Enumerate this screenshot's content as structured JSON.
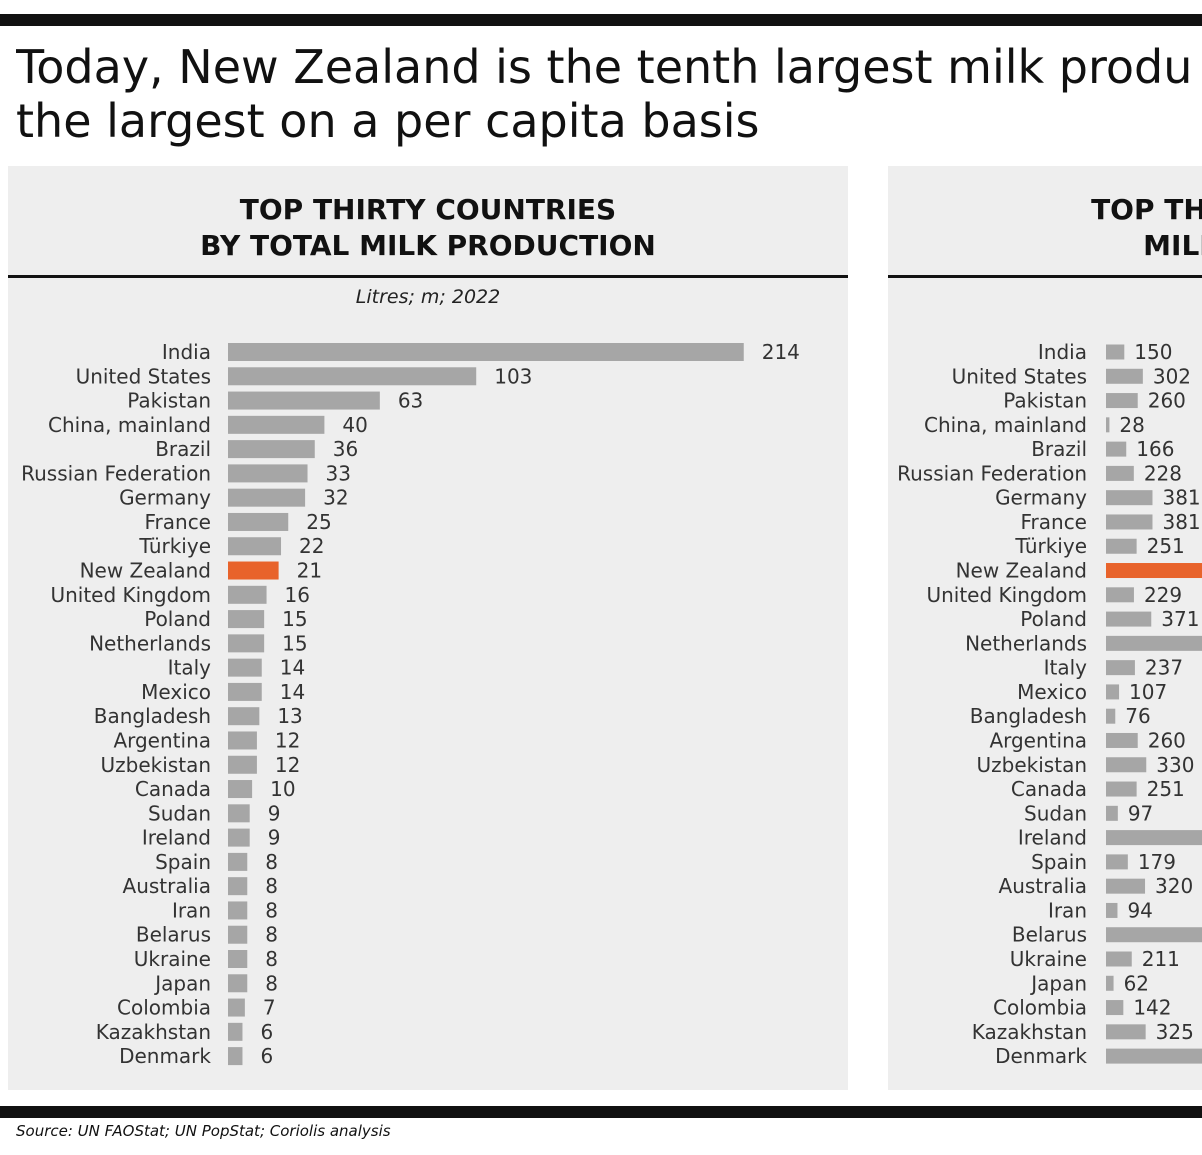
{
  "headline": {
    "line1": "Today, New Zealand is the tenth largest milk produ",
    "line2": "the largest on a per capita basis"
  },
  "source": "Source: UN FAOStat; UN PopStat; Coriolis analysis",
  "colors": {
    "bar": "#a6a6a6",
    "highlight": "#e8632b",
    "panel": "#eeeeee"
  },
  "chart_data": [
    {
      "type": "bar",
      "orientation": "horizontal",
      "title_line1": "TOP THIRTY COUNTRIES",
      "title_line2": "BY TOTAL MILK PRODUCTION",
      "units": "Litres; m; 2022",
      "categories": [
        "India",
        "United States",
        "Pakistan",
        "China, mainland",
        "Brazil",
        "Russian Federation",
        "Germany",
        "France",
        "Türkiye",
        "New Zealand",
        "United Kingdom",
        "Poland",
        "Netherlands",
        "Italy",
        "Mexico",
        "Bangladesh",
        "Argentina",
        "Uzbekistan",
        "Canada",
        "Sudan",
        "Ireland",
        "Spain",
        "Australia",
        "Iran",
        "Belarus",
        "Ukraine",
        "Japan",
        "Colombia",
        "Kazakhstan",
        "Denmark"
      ],
      "values": [
        214,
        103,
        63,
        40,
        36,
        33,
        32,
        25,
        22,
        21,
        16,
        15,
        15,
        14,
        14,
        13,
        12,
        12,
        10,
        9,
        9,
        8,
        8,
        8,
        8,
        8,
        8,
        7,
        6,
        6
      ],
      "highlight": "New Zealand"
    },
    {
      "type": "bar",
      "orientation": "horizontal",
      "title_line1": "TOP THIRTY MI",
      "title_line2": "MILK PR",
      "categories": [
        "India",
        "United States",
        "Pakistan",
        "China, mainland",
        "Brazil",
        "Russian Federation",
        "Germany",
        "France",
        "Türkiye",
        "New Zealand",
        "United Kingdom",
        "Poland",
        "Netherlands",
        "Italy",
        "Mexico",
        "Bangladesh",
        "Argentina",
        "Uzbekistan",
        "Canada",
        "Sudan",
        "Ireland",
        "Spain",
        "Australia",
        "Iran",
        "Belarus",
        "Ukraine",
        "Japan",
        "Colombia",
        "Kazakhstan",
        "Denmark"
      ],
      "values": [
        150,
        302,
        260,
        28,
        166,
        228,
        381,
        381,
        251,
        null,
        229,
        371,
        null,
        237,
        107,
        76,
        260,
        330,
        251,
        97,
        null,
        179,
        320,
        94,
        null,
        211,
        62,
        142,
        325,
        null
      ],
      "value_labels": [
        "150",
        "302",
        "260",
        "28",
        "166",
        "228",
        "381",
        "381",
        "251",
        "",
        "229",
        "371",
        "",
        "237",
        "107",
        "76",
        "260",
        "330",
        "251",
        "97",
        "",
        "179",
        "320",
        "94",
        "",
        "211",
        "62",
        "142",
        "325",
        ""
      ],
      "highlight": "New Zealand"
    }
  ]
}
